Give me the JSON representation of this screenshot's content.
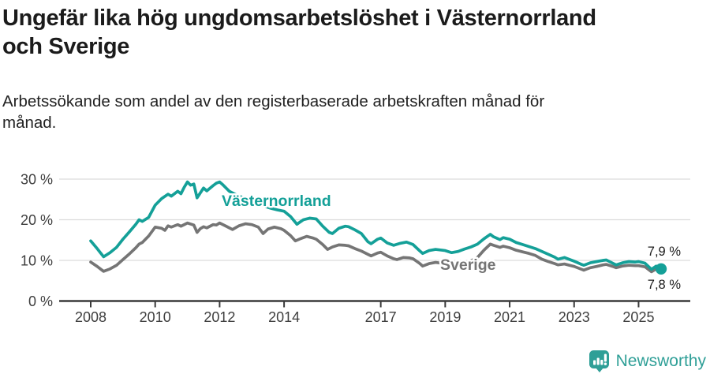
{
  "header": {
    "title_lines": [
      "Ungefär lika hög ungdomsarbetslöshet i Västernorrland",
      "och Sverige"
    ],
    "subtitle_lines": [
      "Arbetssökande som andel av den registerbaserade arbetskraften månad för",
      "månad."
    ]
  },
  "footer": {
    "brand": "Newsworthy",
    "icon": "bar-chart-speech-bubble-icon",
    "brand_color": "#2f9f97"
  },
  "colors": {
    "vasternorrland": "#14a098",
    "sverige": "#757575",
    "axis": "#3a3a3a",
    "gridline": "#dcdcdc",
    "text": "#1b1b1b"
  },
  "chart_data": {
    "type": "line",
    "unit": "%",
    "grid": true,
    "y_axis": {
      "range": [
        0,
        33
      ],
      "ticks": [
        {
          "value": 30,
          "label": "30 %"
        },
        {
          "value": 20,
          "label": "20 %"
        },
        {
          "value": 10,
          "label": "10 %"
        },
        {
          "value": 0,
          "label": "0 %"
        }
      ]
    },
    "x_axis": {
      "range": [
        2007,
        2026.6
      ],
      "ticks": [
        {
          "value": 2008,
          "label": "2008"
        },
        {
          "value": 2010,
          "label": "2010"
        },
        {
          "value": 2012,
          "label": "2012"
        },
        {
          "value": 2014,
          "label": "2014"
        },
        {
          "value": 2017,
          "label": "2017"
        },
        {
          "value": 2019,
          "label": "2019"
        },
        {
          "value": 2021,
          "label": "2021"
        },
        {
          "value": 2023,
          "label": "2023"
        },
        {
          "value": 2025,
          "label": "2025"
        }
      ]
    },
    "series": [
      {
        "id": "vasternorrland",
        "name": "Västernorrland",
        "color": "#14a098",
        "end_label": "7,9 %",
        "end_value": 7.9,
        "points": [
          [
            2008.0,
            14.8
          ],
          [
            2008.2,
            12.9
          ],
          [
            2008.4,
            10.9
          ],
          [
            2008.6,
            11.9
          ],
          [
            2008.8,
            13.2
          ],
          [
            2009.0,
            15.2
          ],
          [
            2009.2,
            17.0
          ],
          [
            2009.4,
            18.9
          ],
          [
            2009.5,
            20.0
          ],
          [
            2009.6,
            19.6
          ],
          [
            2009.8,
            20.6
          ],
          [
            2010.0,
            23.6
          ],
          [
            2010.2,
            25.2
          ],
          [
            2010.4,
            26.3
          ],
          [
            2010.5,
            25.8
          ],
          [
            2010.7,
            27.0
          ],
          [
            2010.8,
            26.4
          ],
          [
            2010.9,
            28.0
          ],
          [
            2011.0,
            29.3
          ],
          [
            2011.1,
            28.5
          ],
          [
            2011.2,
            28.8
          ],
          [
            2011.3,
            25.4
          ],
          [
            2011.4,
            26.6
          ],
          [
            2011.5,
            27.8
          ],
          [
            2011.6,
            27.1
          ],
          [
            2011.8,
            28.4
          ],
          [
            2011.9,
            29.0
          ],
          [
            2012.0,
            29.3
          ],
          [
            2012.1,
            28.6
          ],
          [
            2012.3,
            27.0
          ],
          [
            2012.5,
            26.2
          ],
          [
            2012.7,
            25.5
          ],
          [
            2012.9,
            24.9
          ],
          [
            2013.0,
            24.5
          ],
          [
            2013.2,
            23.9
          ],
          [
            2013.4,
            23.3
          ],
          [
            2013.6,
            22.8
          ],
          [
            2013.8,
            22.4
          ],
          [
            2014.0,
            22.1
          ],
          [
            2014.2,
            20.8
          ],
          [
            2014.4,
            18.9
          ],
          [
            2014.6,
            20.0
          ],
          [
            2014.8,
            20.4
          ],
          [
            2015.0,
            20.2
          ],
          [
            2015.2,
            18.4
          ],
          [
            2015.4,
            16.9
          ],
          [
            2015.5,
            16.6
          ],
          [
            2015.7,
            17.9
          ],
          [
            2015.9,
            18.4
          ],
          [
            2016.0,
            18.3
          ],
          [
            2016.2,
            17.5
          ],
          [
            2016.4,
            16.6
          ],
          [
            2016.6,
            14.6
          ],
          [
            2016.7,
            14.1
          ],
          [
            2016.9,
            15.2
          ],
          [
            2017.0,
            15.5
          ],
          [
            2017.2,
            14.3
          ],
          [
            2017.4,
            13.7
          ],
          [
            2017.6,
            14.2
          ],
          [
            2017.8,
            14.5
          ],
          [
            2018.0,
            13.9
          ],
          [
            2018.2,
            12.4
          ],
          [
            2018.3,
            11.7
          ],
          [
            2018.5,
            12.4
          ],
          [
            2018.7,
            12.7
          ],
          [
            2018.9,
            12.5
          ],
          [
            2019.0,
            12.4
          ],
          [
            2019.2,
            11.9
          ],
          [
            2019.4,
            12.2
          ],
          [
            2019.6,
            12.8
          ],
          [
            2019.8,
            13.3
          ],
          [
            2020.0,
            14.0
          ],
          [
            2020.2,
            15.3
          ],
          [
            2020.4,
            16.4
          ],
          [
            2020.5,
            15.8
          ],
          [
            2020.7,
            15.1
          ],
          [
            2020.8,
            15.6
          ],
          [
            2021.0,
            15.2
          ],
          [
            2021.2,
            14.4
          ],
          [
            2021.4,
            13.9
          ],
          [
            2021.6,
            13.4
          ],
          [
            2021.8,
            12.9
          ],
          [
            2022.0,
            12.2
          ],
          [
            2022.2,
            11.5
          ],
          [
            2022.4,
            10.8
          ],
          [
            2022.5,
            10.3
          ],
          [
            2022.7,
            10.7
          ],
          [
            2022.9,
            10.1
          ],
          [
            2023.0,
            9.8
          ],
          [
            2023.2,
            9.1
          ],
          [
            2023.3,
            8.8
          ],
          [
            2023.5,
            9.4
          ],
          [
            2023.7,
            9.7
          ],
          [
            2023.9,
            10.0
          ],
          [
            2024.0,
            10.1
          ],
          [
            2024.2,
            9.3
          ],
          [
            2024.3,
            8.9
          ],
          [
            2024.5,
            9.4
          ],
          [
            2024.7,
            9.7
          ],
          [
            2024.9,
            9.6
          ],
          [
            2025.0,
            9.7
          ],
          [
            2025.2,
            9.3
          ],
          [
            2025.4,
            7.8
          ],
          [
            2025.55,
            8.6
          ],
          [
            2025.7,
            7.9
          ]
        ]
      },
      {
        "id": "sverige",
        "name": "Sverige",
        "color": "#757575",
        "end_label": "7,8 %",
        "end_value": 7.8,
        "points": [
          [
            2008.0,
            9.6
          ],
          [
            2008.2,
            8.5
          ],
          [
            2008.4,
            7.3
          ],
          [
            2008.6,
            7.9
          ],
          [
            2008.8,
            8.8
          ],
          [
            2009.0,
            10.2
          ],
          [
            2009.2,
            11.6
          ],
          [
            2009.4,
            13.1
          ],
          [
            2009.5,
            14.0
          ],
          [
            2009.6,
            14.4
          ],
          [
            2009.8,
            16.0
          ],
          [
            2010.0,
            18.2
          ],
          [
            2010.2,
            17.9
          ],
          [
            2010.3,
            17.4
          ],
          [
            2010.4,
            18.5
          ],
          [
            2010.5,
            18.2
          ],
          [
            2010.7,
            18.8
          ],
          [
            2010.8,
            18.4
          ],
          [
            2010.9,
            18.8
          ],
          [
            2011.0,
            19.2
          ],
          [
            2011.2,
            18.7
          ],
          [
            2011.3,
            16.9
          ],
          [
            2011.4,
            17.8
          ],
          [
            2011.5,
            18.3
          ],
          [
            2011.6,
            18.0
          ],
          [
            2011.8,
            18.8
          ],
          [
            2011.9,
            18.7
          ],
          [
            2012.0,
            19.2
          ],
          [
            2012.2,
            18.4
          ],
          [
            2012.4,
            17.6
          ],
          [
            2012.6,
            18.5
          ],
          [
            2012.8,
            19.0
          ],
          [
            2013.0,
            18.8
          ],
          [
            2013.2,
            18.2
          ],
          [
            2013.35,
            16.6
          ],
          [
            2013.5,
            17.7
          ],
          [
            2013.7,
            18.2
          ],
          [
            2013.9,
            17.8
          ],
          [
            2014.0,
            17.4
          ],
          [
            2014.2,
            16.1
          ],
          [
            2014.35,
            14.8
          ],
          [
            2014.5,
            15.3
          ],
          [
            2014.7,
            15.9
          ],
          [
            2014.9,
            15.5
          ],
          [
            2015.0,
            15.2
          ],
          [
            2015.2,
            13.9
          ],
          [
            2015.35,
            12.7
          ],
          [
            2015.5,
            13.3
          ],
          [
            2015.7,
            13.8
          ],
          [
            2015.9,
            13.7
          ],
          [
            2016.0,
            13.6
          ],
          [
            2016.2,
            12.9
          ],
          [
            2016.4,
            12.3
          ],
          [
            2016.6,
            11.5
          ],
          [
            2016.7,
            11.1
          ],
          [
            2016.9,
            11.8
          ],
          [
            2017.0,
            12.0
          ],
          [
            2017.2,
            11.1
          ],
          [
            2017.4,
            10.4
          ],
          [
            2017.5,
            10.2
          ],
          [
            2017.7,
            10.7
          ],
          [
            2017.9,
            10.6
          ],
          [
            2018.0,
            10.4
          ],
          [
            2018.2,
            9.3
          ],
          [
            2018.3,
            8.6
          ],
          [
            2018.5,
            9.2
          ],
          [
            2018.7,
            9.5
          ],
          [
            2018.9,
            9.3
          ],
          [
            2019.0,
            9.2
          ],
          [
            2019.2,
            8.8
          ],
          [
            2019.4,
            9.0
          ],
          [
            2019.6,
            9.4
          ],
          [
            2019.8,
            9.9
          ],
          [
            2020.0,
            10.7
          ],
          [
            2020.2,
            12.5
          ],
          [
            2020.4,
            14.0
          ],
          [
            2020.5,
            13.7
          ],
          [
            2020.7,
            13.2
          ],
          [
            2020.8,
            13.5
          ],
          [
            2021.0,
            13.1
          ],
          [
            2021.2,
            12.5
          ],
          [
            2021.4,
            12.1
          ],
          [
            2021.6,
            11.7
          ],
          [
            2021.8,
            11.2
          ],
          [
            2022.0,
            10.3
          ],
          [
            2022.2,
            9.7
          ],
          [
            2022.4,
            9.2
          ],
          [
            2022.5,
            8.9
          ],
          [
            2022.7,
            9.1
          ],
          [
            2022.9,
            8.7
          ],
          [
            2023.0,
            8.5
          ],
          [
            2023.2,
            7.9
          ],
          [
            2023.3,
            7.6
          ],
          [
            2023.5,
            8.2
          ],
          [
            2023.7,
            8.5
          ],
          [
            2023.9,
            8.9
          ],
          [
            2024.0,
            9.0
          ],
          [
            2024.2,
            8.5
          ],
          [
            2024.3,
            8.2
          ],
          [
            2024.5,
            8.6
          ],
          [
            2024.7,
            8.8
          ],
          [
            2024.9,
            8.7
          ],
          [
            2025.0,
            8.7
          ],
          [
            2025.2,
            8.4
          ],
          [
            2025.4,
            7.2
          ],
          [
            2025.55,
            7.9
          ],
          [
            2025.7,
            7.8
          ]
        ]
      }
    ]
  }
}
